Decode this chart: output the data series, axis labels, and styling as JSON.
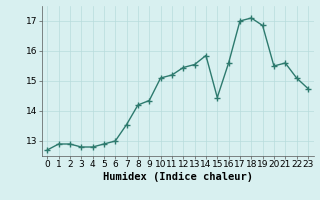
{
  "x": [
    0,
    1,
    2,
    3,
    4,
    5,
    6,
    7,
    8,
    9,
    10,
    11,
    12,
    13,
    14,
    15,
    16,
    17,
    18,
    19,
    20,
    21,
    22,
    23
  ],
  "y": [
    12.7,
    12.9,
    12.9,
    12.8,
    12.8,
    12.9,
    13.0,
    13.55,
    14.2,
    14.35,
    15.1,
    15.2,
    15.45,
    15.55,
    15.85,
    14.45,
    15.6,
    17.0,
    17.1,
    16.85,
    15.5,
    15.6,
    15.1,
    14.75
  ],
  "xlabel": "Humidex (Indice chaleur)",
  "ylim": [
    12.5,
    17.5
  ],
  "xlim": [
    -0.5,
    23.5
  ],
  "yticks": [
    13,
    14,
    15,
    16,
    17
  ],
  "xticks": [
    0,
    1,
    2,
    3,
    4,
    5,
    6,
    7,
    8,
    9,
    10,
    11,
    12,
    13,
    14,
    15,
    16,
    17,
    18,
    19,
    20,
    21,
    22,
    23
  ],
  "line_color": "#2d7a6e",
  "marker_color": "#2d7a6e",
  "bg_color": "#d8f0f0",
  "grid_color": "#b8dcdc",
  "xlabel_fontsize": 7.5,
  "tick_fontsize": 6.5,
  "line_width": 1.0,
  "marker_size": 4
}
